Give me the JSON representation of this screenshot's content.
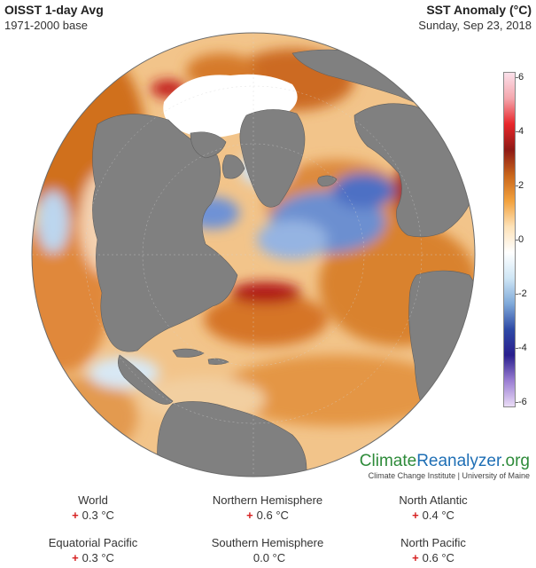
{
  "header": {
    "left_title": "OISST 1-day Avg",
    "left_subtitle": "1971-2000 base",
    "right_title": "SST Anomaly (°C)",
    "right_subtitle": "Sunday, Sep 23, 2018"
  },
  "colorbar": {
    "ticks": [
      "6",
      "4",
      "2",
      "0",
      "-2",
      "-4",
      "-6"
    ],
    "colors": [
      "#fbe0ea",
      "#f4a6ad",
      "#e8262b",
      "#8e1a16",
      "#c9661b",
      "#f2a23e",
      "#fde2b8",
      "#ffffff",
      "#cfe6f5",
      "#7fa9d9",
      "#2e4aa6",
      "#2a1f8e",
      "#9b7ed3",
      "#eadcf6"
    ]
  },
  "map": {
    "land_color": "#808080",
    "ice_color": "#ffffff",
    "warm_color": "#d67a2a",
    "cold_color": "#4a6fc0",
    "hot_color": "#b01818"
  },
  "logo": {
    "part1": "Climate",
    "part2": "Reanalyzer",
    "part3": ".org",
    "subtitle": "Climate Change Institute | University of Maine"
  },
  "stats": [
    {
      "label": "World",
      "sign": "+",
      "value": "0.3 °C"
    },
    {
      "label": "Northern Hemisphere",
      "sign": "+",
      "value": "0.6 °C"
    },
    {
      "label": "North Atlantic",
      "sign": "+",
      "value": "0.4 °C"
    },
    {
      "label": "Equatorial Pacific",
      "sign": "+",
      "value": "0.3 °C"
    },
    {
      "label": "Southern Hemisphere",
      "sign": "",
      "value": "0.0 °C"
    },
    {
      "label": "North Pacific",
      "sign": "+",
      "value": "0.6 °C"
    }
  ]
}
